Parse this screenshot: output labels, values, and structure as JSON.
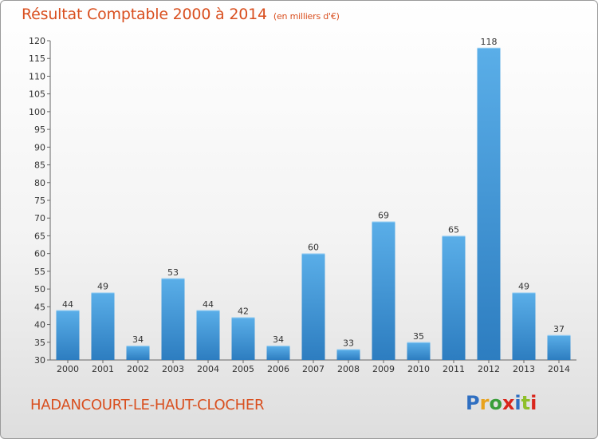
{
  "header": {
    "title": "Résultat Comptable 2000 à 2014",
    "unit": "(en milliers d'€)"
  },
  "footer": {
    "commune": "HADANCOURT-LE-HAUT-CLOCHER",
    "brand": "Proxiti",
    "brand_colors": [
      "#2f6fc1",
      "#e8a21c",
      "#3a9e3a",
      "#d9261c",
      "#2f6fc1",
      "#8fbf2a",
      "#d9261c"
    ]
  },
  "colors": {
    "bar_light": "#5aaee8",
    "bar_dark": "#2d7dc0",
    "title": "#d94f1f"
  },
  "chart_data": {
    "type": "bar",
    "title": "Résultat Comptable 2000 à 2014",
    "xlabel": "",
    "ylabel": "",
    "categories": [
      "2000",
      "2001",
      "2002",
      "2003",
      "2004",
      "2005",
      "2006",
      "2007",
      "2008",
      "2009",
      "2010",
      "2011",
      "2012",
      "2013",
      "2014"
    ],
    "values": [
      44,
      49,
      34,
      53,
      44,
      42,
      34,
      60,
      33,
      69,
      35,
      65,
      118,
      49,
      37
    ],
    "ylim": [
      30,
      120
    ],
    "yticks": [
      30,
      35,
      40,
      45,
      50,
      55,
      60,
      65,
      70,
      75,
      80,
      85,
      90,
      95,
      100,
      105,
      110,
      115,
      120
    ],
    "grid": false,
    "data_labels": true
  }
}
